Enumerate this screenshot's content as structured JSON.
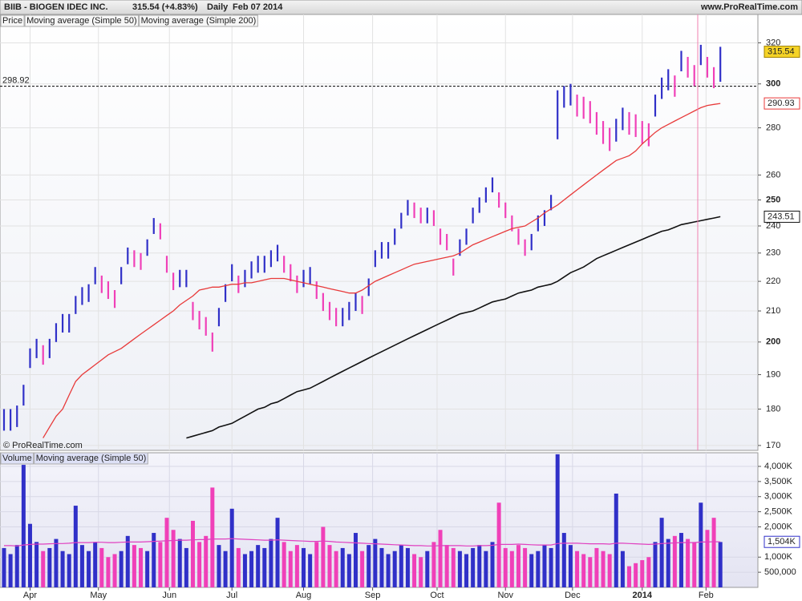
{
  "header": {
    "symbol": "BIIB - BIOGEN IDEC INC.",
    "quote": "315.54 (+4.83%)",
    "period": "Daily",
    "date": "Feb 07 2014",
    "site": "www.ProRealTime.com"
  },
  "chart_data": [
    {
      "type": "range_bar",
      "log_scale": true,
      "grid": true,
      "copyright": "© ProRealTime.com",
      "last_price": 315.54,
      "reference_line": 298.92,
      "ylim": [
        168.7,
        334.6
      ],
      "yticks": [
        170,
        180,
        190,
        200,
        210,
        220,
        230,
        240,
        250,
        260,
        280,
        300,
        320
      ],
      "xticks": [
        {
          "value": 4,
          "label": "Apr"
        },
        {
          "value": 14.5,
          "label": "May"
        },
        {
          "value": 25.4,
          "label": "Jun"
        },
        {
          "value": 35,
          "label": "Jul"
        },
        {
          "value": 46,
          "label": "Aug"
        },
        {
          "value": 56.6,
          "label": "Sep"
        },
        {
          "value": 66.5,
          "label": "Oct"
        },
        {
          "value": 77,
          "label": "Nov"
        },
        {
          "value": 87.3,
          "label": "Dec"
        },
        {
          "value": 98,
          "label": "2014"
        },
        {
          "value": 107.8,
          "label": "Feb"
        }
      ],
      "series": [
        {
          "name": "Price",
          "up_color": "#3030c8",
          "down_color": "#f040b8",
          "high": [
            180,
            180,
            181,
            187,
            198,
            201,
            199,
            201,
            206,
            209,
            209,
            215,
            218,
            219,
            225,
            222,
            220,
            217,
            225,
            232,
            231,
            230,
            235,
            243,
            241,
            229,
            223,
            224,
            224,
            213,
            210,
            208,
            203,
            211,
            219,
            226,
            222,
            224,
            227,
            229,
            229,
            231,
            233,
            229,
            226,
            222,
            224,
            225,
            220,
            216,
            213,
            211,
            211,
            213,
            216,
            215,
            221,
            231,
            234,
            234,
            239,
            245,
            250,
            249,
            247,
            247,
            246,
            239,
            237,
            228,
            235,
            239,
            247,
            251,
            255,
            259,
            253,
            249,
            244,
            239,
            235,
            237,
            244,
            246,
            252,
            297,
            299,
            300,
            295,
            294,
            292,
            287,
            283,
            280,
            284,
            289,
            287,
            286,
            283,
            282,
            295,
            303,
            307,
            304,
            316,
            313,
            309,
            319,
            313,
            308,
            318
          ],
          "low": [
            174,
            174,
            175,
            181,
            192,
            195,
            193,
            195,
            200,
            203,
            203,
            209,
            212,
            213,
            219,
            216,
            214,
            211,
            219,
            226,
            225,
            224,
            229,
            237,
            235,
            223,
            217,
            218,
            218,
            207,
            204,
            202,
            197,
            205,
            213,
            220,
            216,
            218,
            221,
            223,
            223,
            225,
            227,
            223,
            220,
            216,
            218,
            219,
            214,
            210,
            207,
            205,
            205,
            207,
            210,
            209,
            215,
            225,
            228,
            228,
            233,
            239,
            244,
            243,
            241,
            241,
            240,
            233,
            231,
            222,
            229,
            233,
            241,
            245,
            249,
            253,
            247,
            243,
            238,
            233,
            229,
            231,
            238,
            240,
            246,
            275,
            289,
            290,
            285,
            284,
            282,
            277,
            273,
            270,
            274,
            279,
            277,
            276,
            273,
            272,
            285,
            293,
            297,
            294,
            306,
            303,
            299,
            309,
            303,
            298,
            301
          ]
        },
        {
          "name": "Moving average (Simple 50)",
          "color": "#e83a3a",
          "values": [
            null,
            null,
            null,
            null,
            null,
            null,
            172,
            175,
            178,
            180,
            184,
            188,
            190,
            191.5,
            193,
            194.5,
            196,
            197,
            198,
            199.5,
            201,
            202.5,
            204,
            205.5,
            207,
            208.5,
            210,
            212,
            213.5,
            215,
            217,
            217.5,
            218,
            218,
            218.5,
            219,
            219,
            219.5,
            219.5,
            220,
            220.5,
            221,
            221,
            221,
            220.5,
            220,
            219.5,
            219,
            218.5,
            218,
            217.5,
            217,
            216.5,
            216,
            216,
            217,
            218.5,
            220,
            221,
            222,
            223,
            224,
            225,
            226,
            226.5,
            227,
            227.5,
            228,
            228.5,
            229,
            230,
            231.5,
            233,
            234,
            235,
            236,
            237,
            238,
            239,
            239.5,
            240,
            241.5,
            243,
            245,
            246.5,
            248,
            250,
            252,
            254,
            256,
            258,
            260,
            262,
            264,
            266,
            267,
            268,
            270,
            273,
            275.5,
            278,
            280,
            281.5,
            283,
            284.5,
            286,
            287.5,
            289,
            290,
            290.5,
            290.93
          ]
        },
        {
          "name": "Moving average (Simple 200)",
          "color": "#111111",
          "values": [
            null,
            null,
            null,
            null,
            null,
            null,
            null,
            null,
            null,
            null,
            null,
            null,
            null,
            null,
            null,
            null,
            null,
            null,
            null,
            null,
            null,
            null,
            null,
            null,
            null,
            null,
            null,
            null,
            172,
            172.5,
            173,
            173.5,
            174,
            175,
            175.5,
            176,
            177,
            178,
            179,
            180,
            180.5,
            181.5,
            182,
            183,
            184,
            185,
            185.5,
            186,
            187,
            188,
            189,
            190,
            191,
            192,
            193,
            194,
            195,
            196,
            197,
            198,
            199,
            200,
            201,
            202,
            203,
            204,
            205,
            206,
            207,
            208,
            209,
            209.5,
            210,
            211,
            212,
            213,
            213.5,
            214,
            215,
            216,
            216.5,
            217,
            218,
            218.5,
            219,
            220,
            221.5,
            223,
            224,
            225,
            226.5,
            228,
            229,
            230,
            231,
            232,
            233,
            234,
            235,
            236,
            237,
            238,
            238.5,
            239.5,
            240.5,
            241,
            241.5,
            242,
            242.5,
            243,
            243.51
          ]
        }
      ]
    },
    {
      "type": "bar",
      "grid": true,
      "ylim": [
        0,
        4450000
      ],
      "yticks": [
        {
          "value": 500000,
          "label": "500,000"
        },
        {
          "value": 1000000,
          "label": "1,000K"
        },
        {
          "value": 2000000,
          "label": "2,000K"
        },
        {
          "value": 2500000,
          "label": "2,500K"
        },
        {
          "value": 3000000,
          "label": "3,000K"
        },
        {
          "value": 3500000,
          "label": "3,500K"
        },
        {
          "value": 4000000,
          "label": "4,000K"
        }
      ],
      "series": [
        {
          "name": "Volume",
          "values": [
            1300000,
            1100000,
            1400000,
            4050000,
            2100000,
            1500000,
            1200000,
            1300000,
            1600000,
            1200000,
            1100000,
            2700000,
            1400000,
            1200000,
            1500000,
            1300000,
            1000000,
            1100000,
            1200000,
            1700000,
            1400000,
            1300000,
            1200000,
            1800000,
            1500000,
            2300000,
            1900000,
            1600000,
            1300000,
            2200000,
            1500000,
            1700000,
            3300000,
            1400000,
            1200000,
            2600000,
            1300000,
            1100000,
            1200000,
            1400000,
            1300000,
            1600000,
            2300000,
            1500000,
            1200000,
            1400000,
            1300000,
            1100000,
            1500000,
            2000000,
            1400000,
            1200000,
            1300000,
            1100000,
            1800000,
            1200000,
            1400000,
            1600000,
            1300000,
            1100000,
            1200000,
            1400000,
            1300000,
            1100000,
            1000000,
            1200000,
            1500000,
            1900000,
            1400000,
            1300000,
            1200000,
            1100000,
            1300000,
            1400000,
            1200000,
            1500000,
            2800000,
            1300000,
            1200000,
            1400000,
            1300000,
            1100000,
            1200000,
            1400000,
            1300000,
            4400000,
            1800000,
            1400000,
            1200000,
            1100000,
            1000000,
            1300000,
            1200000,
            1100000,
            3100000,
            1200000,
            700000,
            800000,
            900000,
            1000000,
            1500000,
            2300000,
            1600000,
            1700000,
            1800000,
            1600000,
            1500000,
            2800000,
            1900000,
            2300000,
            1500000
          ]
        },
        {
          "name": "Moving average (Simple 50)",
          "color": "#e040c0",
          "values": [
            1380000,
            1380000,
            1370000,
            1400000,
            1420000,
            1430000,
            1430000,
            1440000,
            1450000,
            1450000,
            1460000,
            1480000,
            1480000,
            1480000,
            1490000,
            1490000,
            1480000,
            1480000,
            1490000,
            1500000,
            1500000,
            1500000,
            1510000,
            1520000,
            1530000,
            1540000,
            1550000,
            1560000,
            1560000,
            1570000,
            1580000,
            1580000,
            1600000,
            1600000,
            1600000,
            1610000,
            1600000,
            1590000,
            1580000,
            1570000,
            1560000,
            1560000,
            1570000,
            1560000,
            1550000,
            1540000,
            1530000,
            1520000,
            1520000,
            1530000,
            1520000,
            1500000,
            1490000,
            1480000,
            1470000,
            1460000,
            1450000,
            1440000,
            1430000,
            1420000,
            1410000,
            1400000,
            1390000,
            1380000,
            1380000,
            1370000,
            1370000,
            1380000,
            1380000,
            1380000,
            1380000,
            1370000,
            1370000,
            1380000,
            1380000,
            1390000,
            1420000,
            1420000,
            1420000,
            1430000,
            1420000,
            1410000,
            1400000,
            1400000,
            1400000,
            1450000,
            1460000,
            1460000,
            1460000,
            1450000,
            1440000,
            1440000,
            1440000,
            1430000,
            1460000,
            1460000,
            1450000,
            1440000,
            1430000,
            1420000,
            1430000,
            1450000,
            1460000,
            1470000,
            1480000,
            1480000,
            1480000,
            1500000,
            1500000,
            1510000,
            1504000
          ],
          "value_labels": {
            "110": "1,504K"
          }
        }
      ]
    }
  ]
}
